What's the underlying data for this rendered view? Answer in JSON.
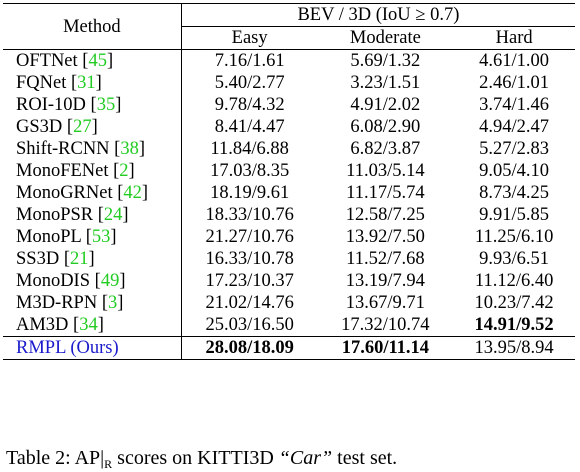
{
  "table": {
    "header": {
      "method": "Method",
      "group": "BEV / 3D (IoU ≥ 0.7)",
      "columns": [
        "Easy",
        "Moderate",
        "Hard"
      ]
    },
    "rows": [
      {
        "name": "OFTNet",
        "ref": "45",
        "easy": "7.16/1.61",
        "moderate": "5.69/1.32",
        "hard": "4.61/1.00"
      },
      {
        "name": "FQNet",
        "ref": "31",
        "easy": "5.40/2.77",
        "moderate": "3.23/1.51",
        "hard": "2.46/1.01"
      },
      {
        "name": "ROI-10D",
        "ref": "35",
        "easy": "9.78/4.32",
        "moderate": "4.91/2.02",
        "hard": "3.74/1.46"
      },
      {
        "name": "GS3D",
        "ref": "27",
        "easy": "8.41/4.47",
        "moderate": "6.08/2.90",
        "hard": "4.94/2.47"
      },
      {
        "name": "Shift-RCNN",
        "ref": "38",
        "easy": "11.84/6.88",
        "moderate": "6.82/3.87",
        "hard": "5.27/2.83"
      },
      {
        "name": "MonoFENet",
        "ref": "2",
        "easy": "17.03/8.35",
        "moderate": "11.03/5.14",
        "hard": "9.05/4.10"
      },
      {
        "name": "MonoGRNet",
        "ref": "42",
        "easy": "18.19/9.61",
        "moderate": "11.17/5.74",
        "hard": "8.73/4.25"
      },
      {
        "name": "MonoPSR",
        "ref": "24",
        "easy": "18.33/10.76",
        "moderate": "12.58/7.25",
        "hard": "9.91/5.85"
      },
      {
        "name": "MonoPL",
        "ref": "53",
        "easy": "21.27/10.76",
        "moderate": "13.92/7.50",
        "hard": "11.25/6.10"
      },
      {
        "name": "SS3D",
        "ref": "21",
        "easy": "16.33/10.78",
        "moderate": "11.52/7.68",
        "hard": "9.93/6.51"
      },
      {
        "name": "MonoDIS",
        "ref": "49",
        "easy": "17.23/10.37",
        "moderate": "13.19/7.94",
        "hard": "11.12/6.40"
      },
      {
        "name": "M3D-RPN",
        "ref": "3",
        "easy": "21.02/14.76",
        "moderate": "13.67/9.71",
        "hard": "10.23/7.42"
      },
      {
        "name": "AM3D",
        "ref": "34",
        "easy": "25.03/16.50",
        "moderate": "17.32/10.74",
        "hard": "14.91/9.52"
      }
    ],
    "ours": {
      "name": "RMPL (Ours)",
      "easy": "28.08/18.09",
      "moderate": "17.60/11.14",
      "hard": "13.95/8.94"
    }
  },
  "caption": {
    "prefix": "Table 2: AP|",
    "subscript": "R",
    "middle": " scores on KITTI3D ",
    "emph": "“Car”",
    "suffix": " test set."
  }
}
